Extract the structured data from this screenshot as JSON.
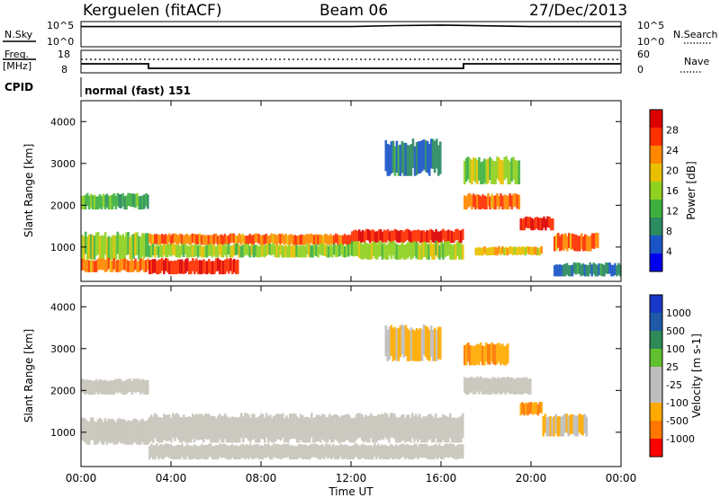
{
  "header": {
    "station": "Kerguelen (fitACF)",
    "beam": "Beam 06",
    "date": "27/Dec/2013"
  },
  "strip1": {
    "left_label": "N.Sky",
    "right_label": "N.Search",
    "left_ticks": [
      "10^5",
      "10^0"
    ],
    "right_ticks": [
      "10^5",
      "10^0"
    ]
  },
  "strip2": {
    "left_label_1": "Freq.",
    "left_label_2": "[MHz]",
    "right_label": "Nave",
    "left_ticks": [
      "18",
      "8"
    ],
    "right_ticks": [
      "60",
      "0"
    ]
  },
  "cpid": {
    "label": "CPID",
    "value": "normal (fast) 151"
  },
  "x_axis": {
    "label": "Time UT",
    "ticks": [
      "00:00",
      "04:00",
      "08:00",
      "12:00",
      "16:00",
      "20:00",
      "00:00"
    ]
  },
  "colors": {
    "power_scale": [
      "#0000ee",
      "#1a55c8",
      "#2a8a60",
      "#3fb040",
      "#8fd020",
      "#e8c000",
      "#ff8800",
      "#ff3000",
      "#dd0000"
    ],
    "velocity_scale": [
      "#ff0000",
      "#ff7700",
      "#ffaa00",
      "#bdbdbd",
      "#bdbdbd",
      "#60c030",
      "#2e8b57",
      "#1e5aa8",
      "#1838c8"
    ],
    "velocity_scatter": "#c8c4ba"
  },
  "chart_data": [
    {
      "type": "line",
      "title": "N.Sky / N.Search",
      "x": [
        0,
        8,
        12,
        14,
        16,
        20,
        24
      ],
      "series": [
        {
          "name": "N.Sky",
          "values": [
            4.0,
            4.0,
            4.0,
            4.2,
            4.3,
            4.0,
            4.0
          ]
        }
      ],
      "xlim": [
        0,
        24
      ],
      "ylim": [
        0,
        5
      ]
    },
    {
      "type": "line",
      "title": "Freq. [MHz]",
      "x": [
        0,
        3,
        3,
        17,
        17,
        24
      ],
      "series": [
        {
          "name": "Freq.",
          "values": [
            12,
            12,
            10,
            10,
            12,
            12
          ]
        }
      ],
      "xlim": [
        0,
        24
      ],
      "ylim": [
        8,
        18
      ]
    },
    {
      "type": "heatmap",
      "title": "Power [dB]",
      "xlabel": "Time UT",
      "ylabel": "Slant Range [km]",
      "xlim": [
        0,
        24
      ],
      "ylim": [
        180,
        4500
      ],
      "y_ticks": [
        1000,
        2000,
        3000,
        4000
      ],
      "colorbar_label": "Power [dB]",
      "colorbar_ticks": [
        4,
        8,
        12,
        16,
        20,
        24,
        28
      ],
      "bands": [
        {
          "t0": 0,
          "t1": 3,
          "r0": 700,
          "r1": 1300,
          "level": 16
        },
        {
          "t0": 0,
          "t1": 3,
          "r0": 1900,
          "r1": 2250,
          "level": 12
        },
        {
          "t0": 0,
          "t1": 3,
          "r0": 400,
          "r1": 700,
          "level": 24
        },
        {
          "t0": 3,
          "t1": 12,
          "r0": 1050,
          "r1": 1300,
          "level": 24
        },
        {
          "t0": 3,
          "t1": 7,
          "r0": 350,
          "r1": 700,
          "level": 28
        },
        {
          "t0": 3,
          "t1": 12,
          "r0": 750,
          "r1": 1050,
          "level": 16
        },
        {
          "t0": 12,
          "t1": 17,
          "r0": 1100,
          "r1": 1400,
          "level": 28
        },
        {
          "t0": 12,
          "t1": 17,
          "r0": 700,
          "r1": 1100,
          "level": 16
        },
        {
          "t0": 13.5,
          "t1": 16,
          "r0": 2700,
          "r1": 3500,
          "level": 8
        },
        {
          "t0": 17,
          "t1": 19.5,
          "r0": 1900,
          "r1": 2250,
          "level": 24
        },
        {
          "t0": 17,
          "t1": 19.5,
          "r0": 2500,
          "r1": 3100,
          "level": 16
        },
        {
          "t0": 17.5,
          "t1": 20.5,
          "r0": 800,
          "r1": 1000,
          "level": 20
        },
        {
          "t0": 19.5,
          "t1": 21,
          "r0": 1400,
          "r1": 1700,
          "level": 28
        },
        {
          "t0": 21,
          "t1": 23,
          "r0": 900,
          "r1": 1300,
          "level": 24
        },
        {
          "t0": 21,
          "t1": 24,
          "r0": 300,
          "r1": 600,
          "level": 8
        }
      ]
    },
    {
      "type": "heatmap",
      "title": "Velocity [m s-1]",
      "xlabel": "Time UT",
      "ylabel": "Slant Range [km]",
      "xlim": [
        0,
        24
      ],
      "ylim": [
        180,
        4500
      ],
      "y_ticks": [
        1000,
        2000,
        3000,
        4000
      ],
      "colorbar_label": "Velocity [m s-1]",
      "colorbar_ticks": [
        -1000,
        -500,
        -100,
        -25,
        25,
        100,
        500,
        1000
      ],
      "bands": [
        {
          "t0": 0,
          "t1": 3,
          "r0": 700,
          "r1": 1300,
          "level": 0
        },
        {
          "t0": 0,
          "t1": 3,
          "r0": 1900,
          "r1": 2250,
          "level": 0
        },
        {
          "t0": 3,
          "t1": 17,
          "r0": 750,
          "r1": 1400,
          "level": 0
        },
        {
          "t0": 3,
          "t1": 17,
          "r0": 350,
          "r1": 700,
          "level": 0
        },
        {
          "t0": 17,
          "t1": 19,
          "r0": 2600,
          "r1": 3100,
          "level": -500
        },
        {
          "t0": 17,
          "t1": 20,
          "r0": 1900,
          "r1": 2300,
          "level": 0
        },
        {
          "t0": 19.5,
          "t1": 20.5,
          "r0": 1400,
          "r1": 1700,
          "level": -500
        },
        {
          "t0": 20.5,
          "t1": 22.5,
          "r0": 900,
          "r1": 1400,
          "level": -100
        },
        {
          "t0": 13.5,
          "t1": 16,
          "r0": 2700,
          "r1": 3500,
          "level": -100
        }
      ]
    }
  ]
}
